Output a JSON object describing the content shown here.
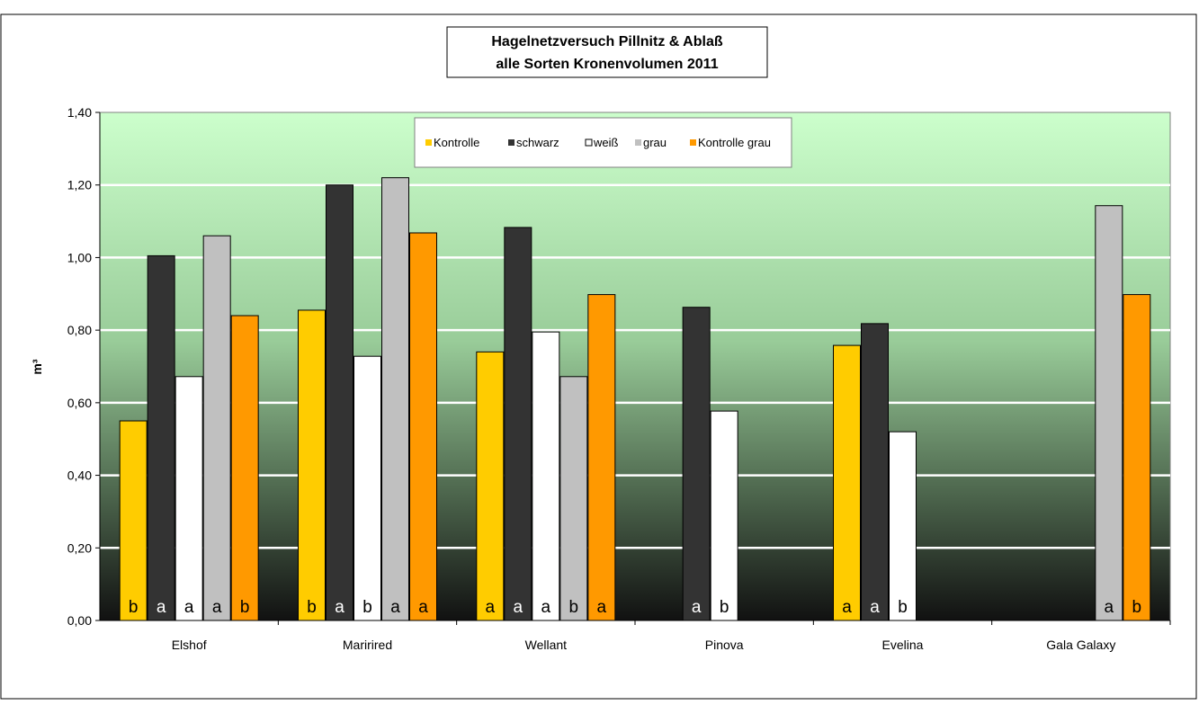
{
  "chart_data": {
    "type": "bar",
    "title": [
      "Hagelnetzversuch Pillnitz & Ablaß",
      "alle Sorten Kronenvolumen 2011"
    ],
    "ylabel": "m³",
    "ylim": [
      0,
      1.4
    ],
    "yticks": [
      "0,00",
      "0,20",
      "0,40",
      "0,60",
      "0,80",
      "1,00",
      "1,20",
      "1,40"
    ],
    "categories": [
      "Elshof",
      "Maririred",
      "Wellant",
      "Pinova",
      "Evelina",
      "Gala Galaxy"
    ],
    "legend_position": "top-center (inside plot)",
    "grid": true,
    "series": [
      {
        "name": "Kontrolle",
        "color": "#FFCC00",
        "values": [
          0.55,
          0.855,
          0.74,
          null,
          0.758,
          null
        ],
        "letters": [
          "b",
          "b",
          "a",
          "",
          "a",
          ""
        ]
      },
      {
        "name": "schwarz",
        "color": "#333333",
        "values": [
          1.005,
          1.2,
          1.083,
          0.863,
          0.818,
          null
        ],
        "letters": [
          "a",
          "a",
          "a",
          "a",
          "a",
          ""
        ]
      },
      {
        "name": "weiß",
        "color": "#FFFFFF",
        "values": [
          0.672,
          0.728,
          0.795,
          0.577,
          0.52,
          null
        ],
        "letters": [
          "a",
          "b",
          "a",
          "b",
          "b",
          ""
        ]
      },
      {
        "name": "grau",
        "color": "#C0C0C0",
        "values": [
          1.06,
          1.22,
          0.672,
          null,
          null,
          1.143
        ],
        "letters": [
          "a",
          "a",
          "b",
          "",
          "",
          "a"
        ]
      },
      {
        "name": "Kontrolle grau",
        "color": "#FF9900",
        "values": [
          0.84,
          1.068,
          0.898,
          null,
          null,
          0.898
        ],
        "letters": [
          "b",
          "a",
          "a",
          "",
          "",
          "b"
        ]
      }
    ]
  }
}
